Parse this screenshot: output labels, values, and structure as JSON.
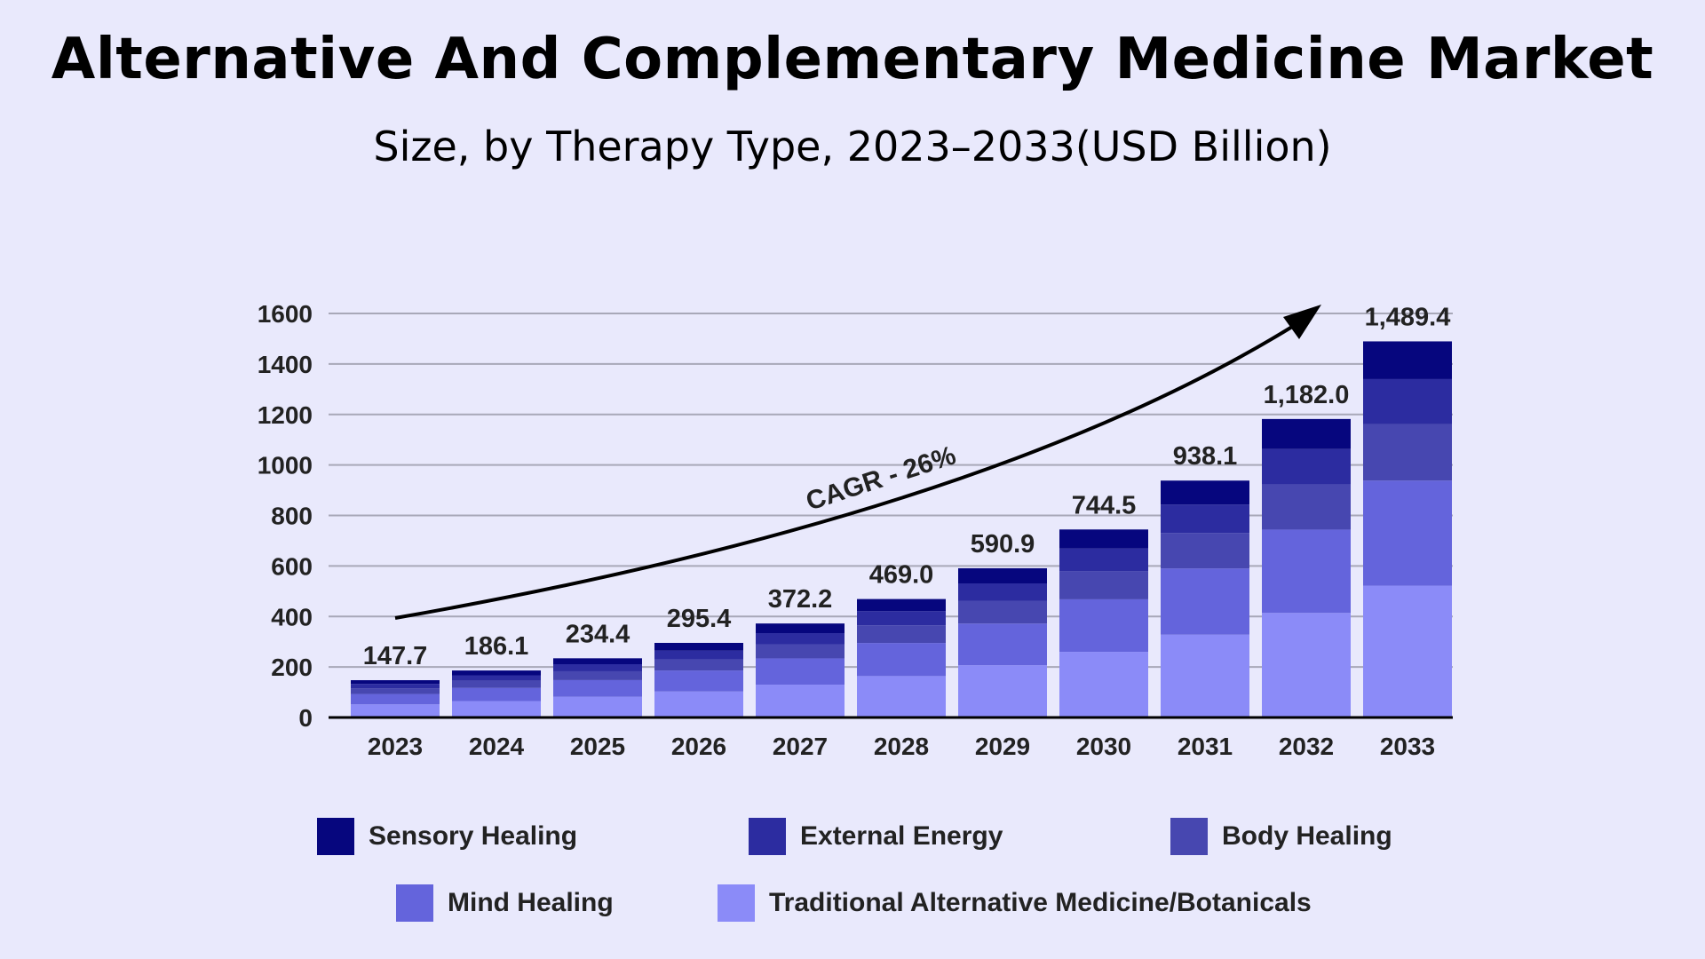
{
  "title": "Alternative And Complementary Medicine Market",
  "subtitle": "Size, by Therapy Type, 2023–2033(USD Billion)",
  "colors": {
    "background": "#E9E9FC",
    "grid": "#A8A8B8",
    "axis": "#000000"
  },
  "chart_data": {
    "type": "bar",
    "stacked": true,
    "categories": [
      "2023",
      "2024",
      "2025",
      "2026",
      "2027",
      "2028",
      "2029",
      "2030",
      "2031",
      "2032",
      "2033"
    ],
    "totals": [
      147.7,
      186.1,
      234.4,
      295.4,
      372.2,
      469.0,
      590.9,
      744.5,
      938.1,
      1182.0,
      1489.4
    ],
    "total_labels": [
      "147.7",
      "186.1",
      "234.4",
      "295.4",
      "372.2",
      "469.0",
      "590.9",
      "744.5",
      "938.1",
      "1,182.0",
      "1,489.4"
    ],
    "series": [
      {
        "name": "Traditional Alternative Medicine/Botanicals",
        "color": "#8B8BF8",
        "values": [
          52,
          65,
          82,
          103,
          130,
          164,
          207,
          260,
          328,
          414,
          522
        ]
      },
      {
        "name": "Mind Healing",
        "color": "#6464DC",
        "values": [
          41,
          52,
          66,
          83,
          104,
          131,
          165,
          208,
          262,
          330,
          416
        ]
      },
      {
        "name": "Body Healing",
        "color": "#4747B0",
        "values": [
          22,
          28,
          35,
          44,
          56,
          70,
          89,
          112,
          141,
          178,
          224
        ]
      },
      {
        "name": "External Energy",
        "color": "#2C2CA0",
        "values": [
          18,
          22,
          28,
          35,
          44,
          56,
          70,
          89,
          112,
          141,
          178
        ]
      },
      {
        "name": "Sensory Healing",
        "color": "#06067E",
        "values": [
          14.7,
          19.1,
          23.4,
          30.4,
          38.2,
          48.0,
          59.9,
          75.5,
          95.1,
          119.0,
          149.4
        ]
      }
    ],
    "legend": [
      "Sensory Healing",
      "External Energy",
      "Body Healing",
      "Mind Healing",
      "Traditional Alternative Medicine/Botanicals"
    ],
    "ylim": [
      0,
      1600
    ],
    "yticks": [
      0,
      200,
      400,
      600,
      800,
      1000,
      1200,
      1400,
      1600
    ],
    "grid": true,
    "annotation": "CAGR - 26%",
    "xlabel": "",
    "ylabel": ""
  }
}
